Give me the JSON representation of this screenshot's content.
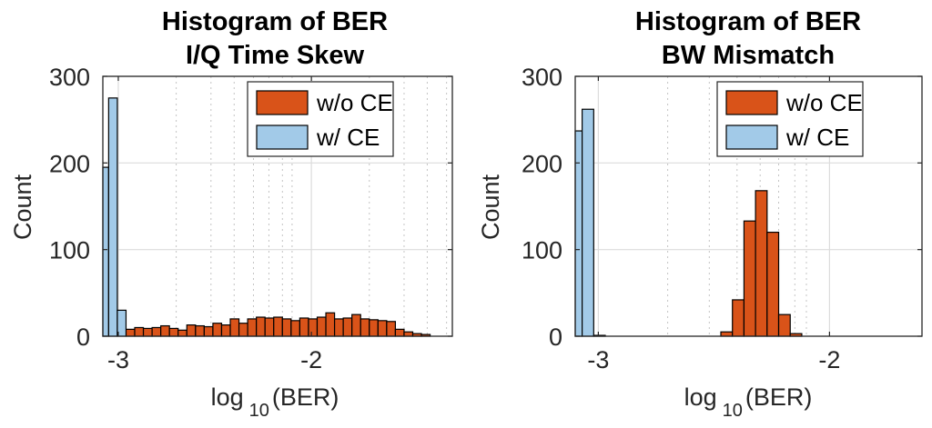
{
  "chart_data": [
    {
      "type": "bar",
      "title": [
        "Histogram of BER",
        "I/Q Time Skew"
      ],
      "xlabel": {
        "base": "log",
        "sub": "10",
        "rest": "(BER)"
      },
      "ylabel": "Count",
      "xlim": [
        -3.08,
        -1.27
      ],
      "ylim": [
        0,
        300
      ],
      "yticks": [
        0,
        100,
        200,
        300
      ],
      "xticks": [
        {
          "value": -3,
          "label": "-3"
        },
        {
          "value": -2,
          "label": "-2"
        }
      ],
      "grid": true,
      "minor_grid_x": [
        -2.7,
        -2.52,
        -2.4,
        -2.3,
        -2.22,
        -2.15,
        -2.1,
        -1.7,
        -1.52,
        -1.4,
        -1.3
      ],
      "legend_position": "top-right",
      "series": [
        {
          "name": "w/o CE",
          "color": "#D95319",
          "bin_width": 0.045,
          "x_start": -2.96,
          "values": [
            8,
            10,
            9,
            10,
            12,
            9,
            7,
            13,
            12,
            11,
            15,
            13,
            20,
            15,
            20,
            22,
            21,
            22,
            20,
            18,
            21,
            20,
            22,
            27,
            20,
            21,
            25,
            20,
            19,
            18,
            17,
            8,
            5,
            3,
            2
          ]
        },
        {
          "name": "w/ CE",
          "color": "#A2CAE8",
          "bin_width": 0.045,
          "x_start": -3.095,
          "values": [
            195,
            275,
            30,
            0
          ]
        }
      ]
    },
    {
      "type": "bar",
      "title": [
        "Histogram of BER",
        "BW Mismatch"
      ],
      "xlabel": {
        "base": "log",
        "sub": "10",
        "rest": "(BER)"
      },
      "ylabel": "Count",
      "xlim": [
        -3.1,
        -1.6
      ],
      "ylim": [
        0,
        300
      ],
      "yticks": [
        0,
        100,
        200,
        300
      ],
      "xticks": [
        {
          "value": -3,
          "label": "-3"
        },
        {
          "value": -2,
          "label": "-2"
        }
      ],
      "grid": true,
      "minor_grid_x": [
        -2.7,
        -2.52,
        -2.4,
        -2.3,
        -2.22,
        -2.15,
        -2.1
      ],
      "legend_position": "top-right",
      "series": [
        {
          "name": "w/o CE",
          "color": "#D95319",
          "bin_width": 0.05,
          "x_start": -3.12,
          "values": [
            0,
            0,
            0,
            0,
            0,
            0,
            0,
            0,
            0,
            0,
            0,
            0,
            0,
            5,
            42,
            133,
            168,
            120,
            25,
            3
          ]
        },
        {
          "name": "w/ CE",
          "color": "#A2CAE8",
          "bin_width": 0.05,
          "x_start": -3.12,
          "values": [
            237,
            262,
            1
          ]
        }
      ]
    }
  ]
}
